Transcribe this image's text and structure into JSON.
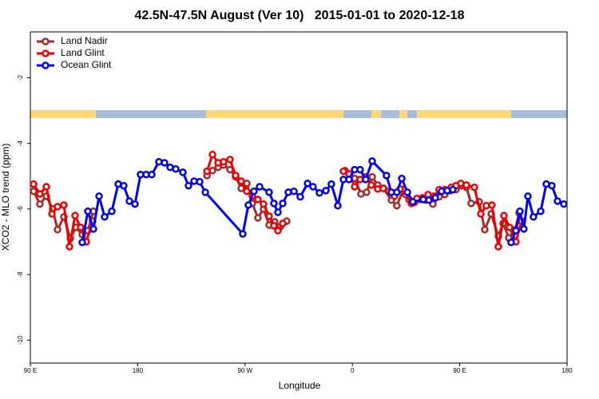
{
  "chart_data": {
    "type": "line",
    "title": "42.5N-47.5N August (Ver 10)   2015-01-01 to 2020-12-18",
    "x_label": "Longitude",
    "y_label": "XCO2 - MLO trend (ppm)",
    "xlim": [
      90,
      540
    ],
    "xticks": [
      {
        "value": 90,
        "label": "90 E"
      },
      180,
      {
        "value": 270,
        "label": "90 W"
      },
      {
        "value": 360,
        "label": "0"
      },
      {
        "value": 450,
        "label": "90 E"
      },
      {
        "value": 540,
        "label": "180"
      }
    ],
    "ylim": [
      -10.7,
      -0.6
    ],
    "yticks": [
      -10,
      -8,
      -6,
      -4,
      -2
    ],
    "legend": "top-left",
    "series": [
      {
        "name": "Land Nadir",
        "color": "#a52a2a",
        "x": [
          92.7,
          98.0,
          103.4,
          108.7,
          112.8,
          118.1,
          123.5,
          128.2,
          133.5,
          138.2,
          142.9,
          null,
          238.1,
          242.7,
          247.4,
          252.0,
          257.4,
          262.1,
          266.8,
          271.5,
          276.1,
          280.8,
          285.5,
          290.2,
          294.9,
          299.6,
          304.9,
          null,
          353.8,
          361.9,
          367.2,
          371.9,
          376.6,
          381.3,
          386.0,
          392.7,
          397.3,
          402.7,
          407.4,
          412.1,
          416.8,
          421.5,
          427.5,
          432.8,
          437.5,
          442.2,
          446.9,
          451.6,
          455.6,
          459.6,
          466.3,
          471.0,
          476.4,
          482.4,
          486.4,
          491.1,
          496.5,
          499.8
        ],
        "values": [
          -5.46,
          -5.85,
          -5.61,
          -6.0,
          -6.63,
          -6.24,
          -6.9,
          -6.56,
          -6.78,
          -6.66,
          -6.07,
          null,
          -4.98,
          -4.83,
          -4.73,
          -4.66,
          -4.8,
          -5.02,
          -5.37,
          -5.22,
          -5.83,
          -6.27,
          -6.0,
          -6.49,
          -6.39,
          -6.54,
          -6.37,
          null,
          -4.83,
          -5.07,
          -5.54,
          -5.49,
          -5.02,
          -5.27,
          -5.37,
          -5.73,
          -5.9,
          -5.41,
          -5.71,
          -5.8,
          -5.71,
          -5.73,
          -5.85,
          -5.63,
          -5.56,
          -5.44,
          -5.41,
          -5.29,
          -5.34,
          -5.83,
          -5.78,
          -6.63,
          -6.15,
          -6.83,
          -6.44,
          -6.88,
          -6.63,
          -6.12
        ]
      },
      {
        "name": "Land Glint",
        "color": "#ee0000",
        "x": [
          92.7,
          98.0,
          103.4,
          108.1,
          112.8,
          118.1,
          122.8,
          127.5,
          132.2,
          136.9,
          142.2,
          null,
          238.1,
          242.7,
          247.4,
          252.0,
          257.4,
          262.1,
          266.8,
          271.5,
          276.1,
          280.8,
          285.5,
          290.2,
          294.2,
          297.6,
          301.6,
          null,
          352.5,
          357.2,
          361.9,
          366.5,
          371.2,
          375.9,
          381.3,
          386.0,
          390.7,
          395.3,
          400.0,
          404.7,
          409.4,
          414.1,
          418.8,
          423.5,
          428.2,
          432.8,
          437.5,
          442.9,
          446.9,
          450.9,
          455.6,
          462.3,
          467.7,
          472.3,
          477.0,
          482.4,
          487.1,
          491.8,
          497.1,
          501.8
        ],
        "values": [
          -5.24,
          -5.54,
          -5.32,
          -6.15,
          -5.93,
          -5.88,
          -7.15,
          -6.2,
          -6.56,
          -7.0,
          -6.37,
          null,
          -4.85,
          -4.34,
          -4.59,
          -4.56,
          -4.49,
          -4.98,
          -5.15,
          -5.46,
          -5.61,
          -5.71,
          -5.85,
          -6.22,
          -6.51,
          -6.66,
          -6.44,
          null,
          -4.85,
          -4.93,
          -5.32,
          -5.1,
          -5.02,
          -5.27,
          -5.39,
          -5.37,
          -5.46,
          -5.61,
          -5.39,
          -5.56,
          -5.83,
          -5.68,
          -5.66,
          -5.56,
          -5.61,
          -5.41,
          -5.41,
          -5.34,
          -5.29,
          -5.22,
          -5.27,
          -5.34,
          -6.15,
          -5.9,
          -5.88,
          -7.15,
          -6.2,
          -6.56,
          -7.0,
          -6.37
        ]
      },
      {
        "name": "Ocean Glint",
        "color": "#0000ee",
        "x": [
          133.5,
          138.2,
          142.9,
          147.6,
          152.3,
          158.3,
          163.7,
          168.3,
          173.0,
          177.7,
          182.4,
          187.1,
          191.8,
          197.8,
          202.5,
          207.2,
          211.9,
          217.9,
          222.6,
          227.3,
          232.0,
          236.7,
          268.1,
          272.8,
          277.5,
          282.2,
          290.2,
          294.2,
          297.6,
          301.6,
          306.3,
          311.0,
          316.3,
          322.4,
          327.0,
          332.4,
          337.8,
          342.4,
          347.8,
          352.5,
          357.2,
          361.9,
          366.5,
          371.2,
          376.6,
          388.6,
          392.7,
          397.3,
          401.4,
          406.1,
          410.7,
          419.4,
          424.1,
          429.5,
          434.8,
          439.5,
          444.2,
          null,
          493.1,
          497.1,
          500.5,
          503.8,
          507.2,
          511.8,
          517.9,
          522.6,
          527.3,
          532.0,
          537.3
        ],
        "values": [
          -7.02,
          -6.07,
          -6.61,
          -5.61,
          -6.24,
          -6.07,
          -5.24,
          -5.29,
          -5.76,
          -5.85,
          -4.95,
          -4.95,
          -4.95,
          -4.56,
          -4.59,
          -4.73,
          -4.78,
          -4.88,
          -5.29,
          -5.15,
          -5.17,
          -5.49,
          -6.76,
          -5.88,
          -5.46,
          -5.32,
          -5.49,
          -5.83,
          -6.1,
          -5.83,
          -5.49,
          -5.46,
          -5.63,
          -5.22,
          -5.32,
          -5.51,
          -5.44,
          -5.24,
          -5.9,
          -5.1,
          -5.1,
          -4.8,
          -4.8,
          -5.1,
          -4.54,
          -4.98,
          -5.49,
          -5.49,
          -5.07,
          -5.49,
          -5.78,
          -5.71,
          -5.73,
          -5.66,
          -5.46,
          -5.44,
          -5.41,
          null,
          -7.02,
          -6.66,
          -6.07,
          -6.61,
          -5.61,
          -6.24,
          -6.07,
          -5.24,
          -5.29,
          -5.76,
          -5.85
        ]
      }
    ]
  }
}
